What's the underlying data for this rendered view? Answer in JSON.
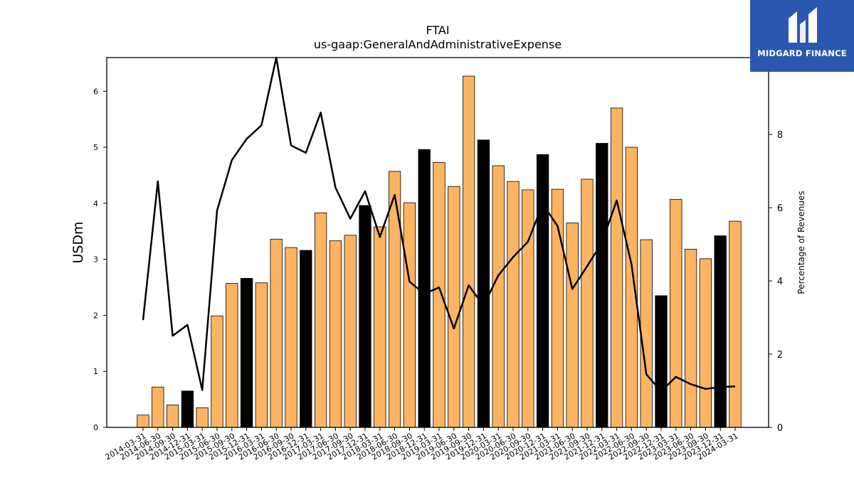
{
  "chart_data": {
    "type": "bar",
    "title": "FTAI",
    "subtitle": "us-gaap:GeneralAndAdministrativeExpense",
    "ylabel": "USDm",
    "y2label": "Percentage of Revenues",
    "ylim": [
      0,
      6.6
    ],
    "y2lim": [
      0,
      10.1
    ],
    "yticks": [
      "0",
      "1",
      "2",
      "3",
      "4",
      "5",
      "6"
    ],
    "y2ticks": [
      "0",
      "2",
      "4",
      "6",
      "8"
    ],
    "categories": [
      "2014-03-31",
      "2014-06-30",
      "2014-09-30",
      "2014-12-31",
      "2015-03-31",
      "2015-06-30",
      "2015-09-30",
      "2015-12-31",
      "2016-03-31",
      "2016-06-30",
      "2016-09-30",
      "2016-12-31",
      "2017-03-31",
      "2017-06-30",
      "2017-09-30",
      "2017-12-31",
      "2018-03-31",
      "2018-06-30",
      "2018-09-30",
      "2018-12-31",
      "2019-03-31",
      "2019-06-30",
      "2019-09-30",
      "2019-12-31",
      "2020-03-31",
      "2020-06-30",
      "2020-09-30",
      "2020-12-31",
      "2021-03-31",
      "2021-06-30",
      "2021-09-30",
      "2021-12-31",
      "2022-03-31",
      "2022-06-30",
      "2022-09-30",
      "2022-12-31",
      "2023-03-31",
      "2023-06-30",
      "2023-09-30",
      "2023-12-31",
      "2024-03-31"
    ],
    "series": [
      {
        "type": "bar",
        "values": [
          0.22,
          0.72,
          0.4,
          0.65,
          0.35,
          1.99,
          2.57,
          2.66,
          2.58,
          3.36,
          3.21,
          3.16,
          3.83,
          3.33,
          3.43,
          3.96,
          3.58,
          4.57,
          4.01,
          4.96,
          4.73,
          4.3,
          6.27,
          5.13,
          4.67,
          4.39,
          4.24,
          4.87,
          4.25,
          3.65,
          4.43,
          5.07,
          5.7,
          5.0,
          3.35,
          2.35,
          4.07,
          3.18,
          3.01,
          3.42,
          3.68
        ],
        "highlight": [
          false,
          false,
          false,
          true,
          false,
          false,
          false,
          true,
          false,
          false,
          false,
          true,
          false,
          false,
          false,
          true,
          false,
          false,
          false,
          true,
          false,
          false,
          false,
          true,
          false,
          false,
          false,
          true,
          false,
          false,
          false,
          true,
          false,
          false,
          false,
          true,
          false,
          false,
          false,
          true,
          false
        ]
      },
      {
        "type": "line",
        "axis": "right",
        "values": [
          2.93,
          6.72,
          2.5,
          2.8,
          1.02,
          5.92,
          7.3,
          7.88,
          8.25,
          10.1,
          7.7,
          7.5,
          8.6,
          6.55,
          5.7,
          6.45,
          5.2,
          6.35,
          3.98,
          3.65,
          3.82,
          2.7,
          3.88,
          3.32,
          4.15,
          4.65,
          5.07,
          6.1,
          5.5,
          3.78,
          4.4,
          5.05,
          6.2,
          4.45,
          1.45,
          0.98,
          1.38,
          1.18,
          1.05,
          1.1,
          1.12
        ]
      }
    ],
    "colors": {
      "bar": "#fdb462",
      "highlight": "#000000",
      "line": "#000000"
    },
    "grid": false
  },
  "logo": {
    "text": "MIDGARD FINANCE"
  }
}
